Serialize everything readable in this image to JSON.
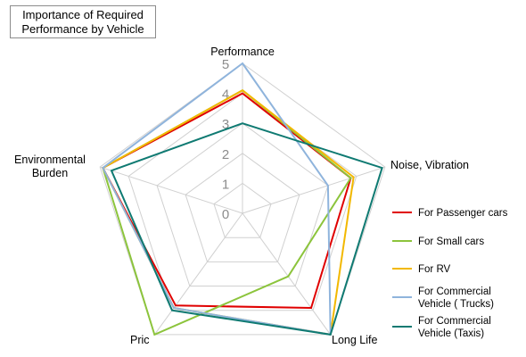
{
  "chart_data": {
    "type": "radar",
    "title_lines": [
      "Importance of Required",
      "Performance by Vehicle"
    ],
    "axes": [
      "Performance",
      "Noise, Vibration",
      "Long Life",
      "Pric",
      "Environmental Burden"
    ],
    "axis_label_lines": [
      [
        "Performance"
      ],
      [
        "Noise, Vibration"
      ],
      [
        "Long Life"
      ],
      [
        "Pric"
      ],
      [
        "Environmental",
        "Burden"
      ]
    ],
    "rlim": [
      0,
      5
    ],
    "ticks": [
      "0",
      "1",
      "2",
      "3",
      "4",
      "5"
    ],
    "grid": true,
    "legend_position": "right",
    "series": [
      {
        "name_lines": [
          "For  Passenger cars"
        ],
        "color": "#e00000",
        "values": [
          4.0,
          3.8,
          3.9,
          3.8,
          4.9
        ]
      },
      {
        "name_lines": [
          "For Small  cars"
        ],
        "color": "#8cc43c",
        "values": [
          4.1,
          3.8,
          2.6,
          5.0,
          4.9
        ]
      },
      {
        "name_lines": [
          "For RV"
        ],
        "color": "#f2b800",
        "values": [
          4.1,
          3.9,
          5.0,
          3.9,
          4.9
        ]
      },
      {
        "name_lines": [
          "For Commercial",
          "Vehicle ( Trucks)"
        ],
        "color": "#8fb4dc",
        "values": [
          5.0,
          3.0,
          5.0,
          3.9,
          4.9
        ]
      },
      {
        "name_lines": [
          "For Commercial",
          "Vehicle (Taxis)"
        ],
        "color": "#0f7a72",
        "values": [
          3.0,
          4.9,
          5.0,
          4.0,
          4.6
        ]
      }
    ]
  }
}
